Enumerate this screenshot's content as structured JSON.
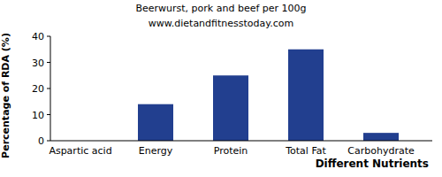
{
  "chart_data": {
    "type": "bar",
    "title": "Beerwurst, pork and beef per 100g",
    "subtitle": "www.dietandfitnesstoday.com",
    "x_label": "Different Nutrients",
    "y_label": "Percentage of RDA (%)",
    "categories": [
      "Aspartic acid",
      "Energy",
      "Protein",
      "Total Fat",
      "Carbohydrate"
    ],
    "values": [
      0,
      14,
      25,
      35,
      3
    ],
    "color": "#223f8f",
    "ylim": [
      0,
      40
    ],
    "yticks": [
      0,
      10,
      20,
      30,
      40
    ],
    "grid": false
  }
}
